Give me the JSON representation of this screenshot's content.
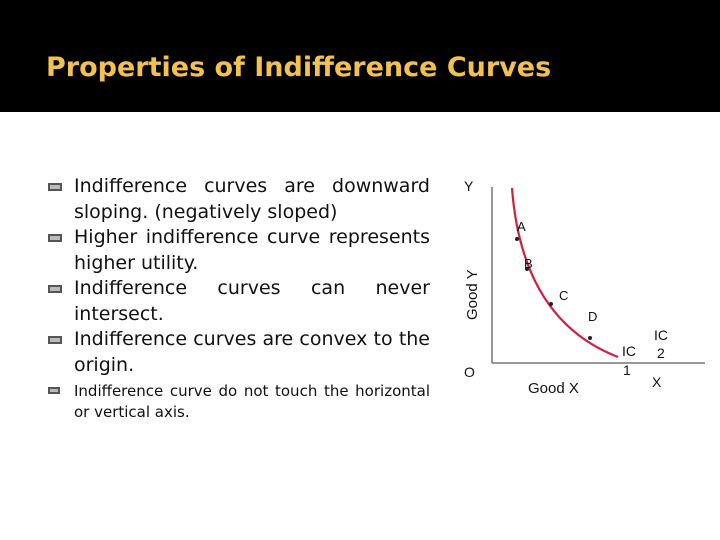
{
  "title": "Properties of Indifference Curves",
  "bullets": [
    "Indifference curves are downward sloping. (negatively sloped)",
    "Higher indifference curve represents higher utility.",
    "Indifference curves can never intersect.",
    "Indifference curves are convex to the origin.",
    "Indifference curve do not touch the horizontal or vertical axis."
  ],
  "diagram": {
    "axis_y_letter": "Y",
    "axis_y_label": "Good Y",
    "origin_label": "O",
    "axis_x_label": "Good X",
    "axis_x_letter": "X",
    "points": [
      "A",
      "B",
      "C",
      "D"
    ],
    "ic1_label": [
      "IC",
      "1"
    ],
    "ic2_label": [
      "IC",
      "2"
    ],
    "curve_color": "#cc2244"
  }
}
